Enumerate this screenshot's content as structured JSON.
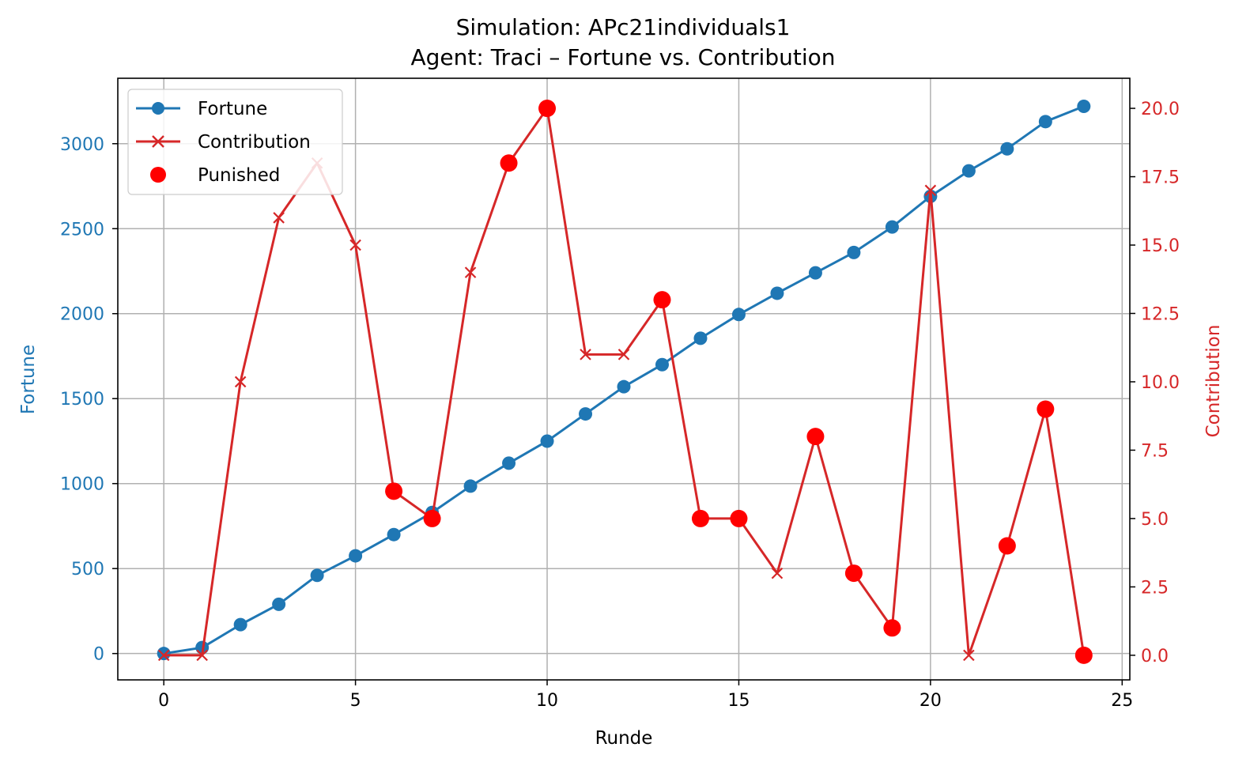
{
  "chart_data": {
    "type": "line",
    "title": "Simulation: APc21individuals1",
    "subtitle": "Agent: Traci – Fortune vs. Contribution",
    "xlabel": "Runde",
    "ylabel_left": "Fortune",
    "ylabel_right": "Contribution",
    "xlim": [
      -1.2,
      25.2
    ],
    "ylim_left": [
      -155,
      3385
    ],
    "ylim_right": [
      -0.9,
      21.1
    ],
    "x_ticks": [
      0,
      5,
      10,
      15,
      20,
      25
    ],
    "x_tick_labels": [
      "0",
      "5",
      "10",
      "15",
      "20",
      "25"
    ],
    "y_left_ticks": [
      0,
      500,
      1000,
      1500,
      2000,
      2500,
      3000
    ],
    "y_left_tick_labels": [
      "0",
      "500",
      "1000",
      "1500",
      "2000",
      "2500",
      "3000"
    ],
    "y_right_ticks": [
      0,
      2.5,
      5,
      7.5,
      10,
      12.5,
      15,
      17.5,
      20
    ],
    "y_right_tick_labels": [
      "0.0",
      "2.5",
      "5.0",
      "7.5",
      "10.0",
      "12.5",
      "15.0",
      "17.5",
      "20.0"
    ],
    "grid": true,
    "legend_position": "top-left",
    "x": [
      0,
      1,
      2,
      3,
      4,
      5,
      6,
      7,
      8,
      9,
      10,
      11,
      12,
      13,
      14,
      15,
      16,
      17,
      18,
      19,
      20,
      21,
      22,
      23,
      24
    ],
    "series": [
      {
        "name": "Fortune",
        "axis": "left",
        "color": "#1f77b4",
        "marker": "circle",
        "values": [
          0,
          35,
          170,
          290,
          460,
          575,
          700,
          830,
          985,
          1120,
          1250,
          1410,
          1570,
          1700,
          1855,
          1995,
          2120,
          2240,
          2360,
          2510,
          2690,
          2840,
          2970,
          3130,
          3220
        ]
      },
      {
        "name": "Contribution",
        "axis": "right",
        "color": "#d62728",
        "marker": "x",
        "values": [
          0,
          0,
          10,
          16,
          18,
          15,
          6,
          5,
          14,
          18,
          20,
          11,
          11,
          13,
          5,
          5,
          3,
          8,
          3,
          1,
          17,
          0,
          4,
          9,
          0
        ]
      },
      {
        "name": "Punished",
        "axis": "right",
        "color": "#ff0000",
        "marker": "dot",
        "x": [
          6,
          7,
          9,
          10,
          13,
          14,
          15,
          17,
          18,
          19,
          22,
          23,
          24
        ],
        "values": [
          6,
          5,
          18,
          20,
          13,
          5,
          5,
          8,
          3,
          1,
          4,
          9,
          0
        ]
      }
    ]
  }
}
